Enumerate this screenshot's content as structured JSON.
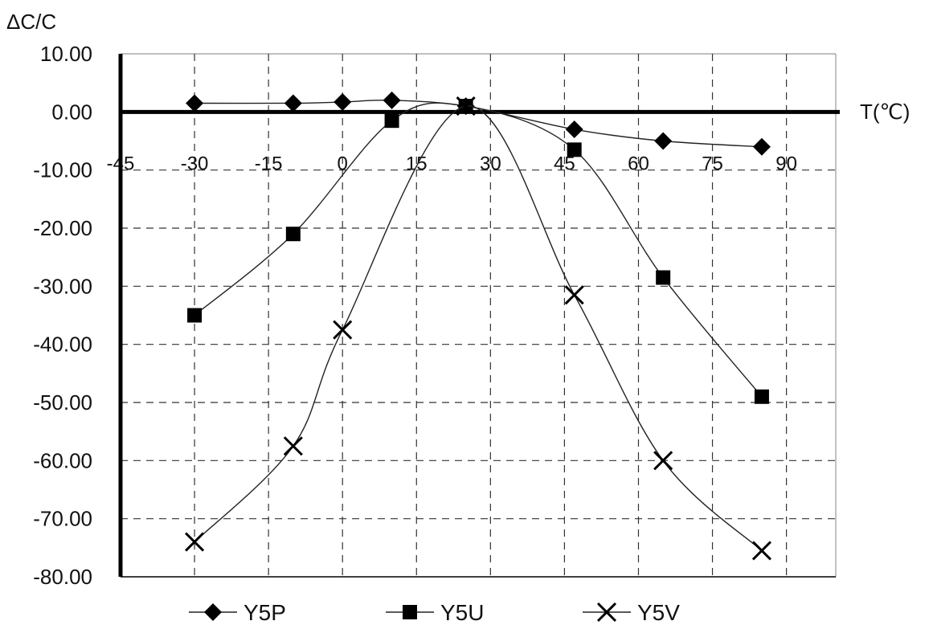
{
  "chart_data": {
    "type": "line",
    "title": "",
    "ylabel": "ΔC/C",
    "xlabel": "T(℃)",
    "ylim": [
      -80,
      10
    ],
    "xlim": [
      -45,
      100
    ],
    "yticks": [
      "10.00",
      "0.00",
      "-10.00",
      "-20.00",
      "-30.00",
      "-40.00",
      "-50.00",
      "-60.00",
      "-70.00",
      "-80.00"
    ],
    "ytick_values": [
      10,
      0,
      -10,
      -20,
      -30,
      -40,
      -50,
      -60,
      -70,
      -80
    ],
    "xticks": [
      "-45",
      "-30",
      "-15",
      "0",
      "15",
      "30",
      "45",
      "60",
      "75",
      "90"
    ],
    "xtick_values": [
      -45,
      -30,
      -15,
      0,
      15,
      30,
      45,
      60,
      75,
      90
    ],
    "grid": true,
    "legend": "bottom",
    "series": [
      {
        "name": "Y5P",
        "marker": "diamond",
        "x": [
          -30,
          -10,
          0,
          10,
          25,
          47,
          65,
          85
        ],
        "y": [
          1.5,
          1.5,
          1.7,
          2.0,
          1.0,
          -3.0,
          -5.0,
          -6.0
        ]
      },
      {
        "name": "Y5U",
        "marker": "square",
        "x": [
          -30,
          -10,
          10,
          25,
          47,
          65,
          85
        ],
        "y": [
          -35.0,
          -21.0,
          -1.5,
          1.0,
          -6.5,
          -28.5,
          -49.0
        ]
      },
      {
        "name": "Y5V",
        "marker": "x",
        "x": [
          -30,
          -10,
          0,
          25,
          47,
          65,
          85
        ],
        "y": [
          -74.0,
          -57.5,
          -37.5,
          1.0,
          -31.5,
          -60.0,
          -75.5
        ]
      }
    ]
  }
}
